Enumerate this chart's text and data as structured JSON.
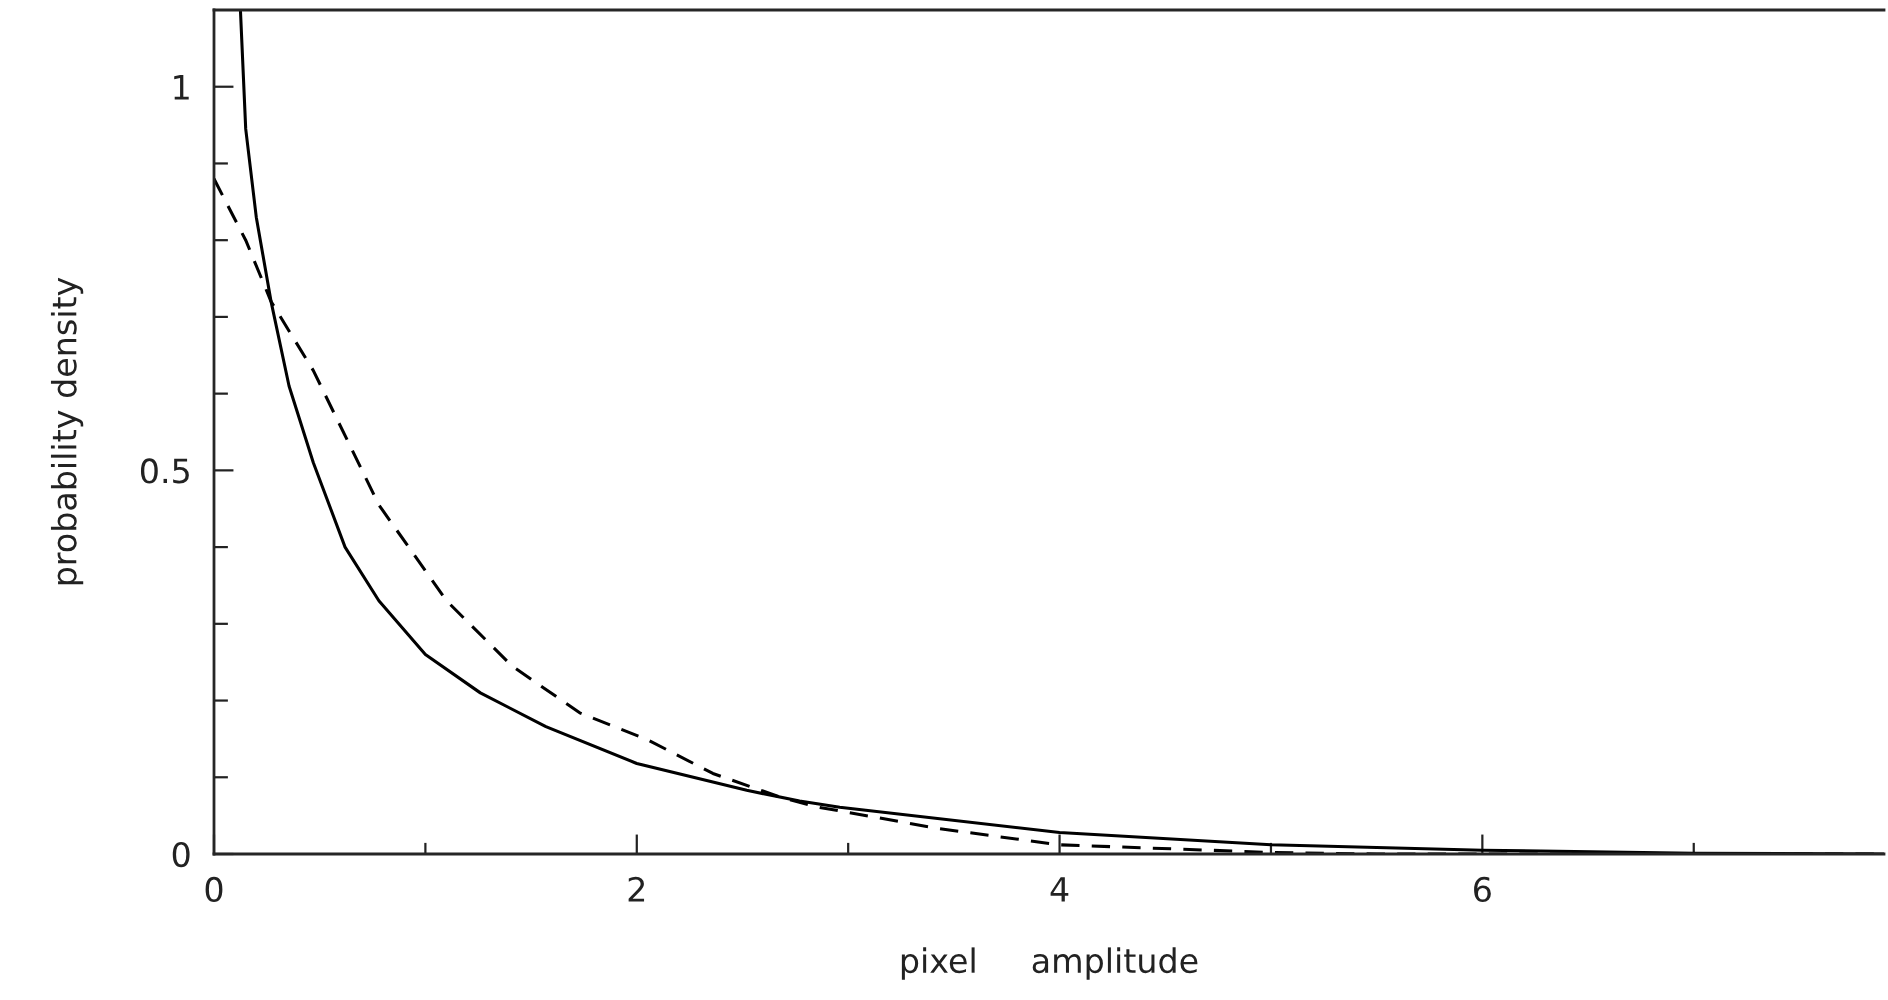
{
  "chart_data": {
    "type": "line",
    "xlabel": "pixel     amplitude",
    "ylabel": "probability density",
    "xlim": [
      0,
      7.9
    ],
    "ylim": [
      0,
      1.1
    ],
    "xticks": [
      0,
      {
        "value": 1,
        "label": null
      },
      2,
      {
        "value": 3,
        "label": null
      },
      4,
      {
        "value": 5,
        "label": null
      },
      6,
      {
        "value": 7,
        "label": null
      }
    ],
    "yticks": [
      0,
      {
        "value": 0.1,
        "label": null
      },
      {
        "value": 0.2,
        "label": null
      },
      {
        "value": 0.3,
        "label": null
      },
      {
        "value": 0.4,
        "label": null
      },
      0.5,
      {
        "value": 0.6,
        "label": null
      },
      {
        "value": 0.7,
        "label": null
      },
      {
        "value": 0.8,
        "label": null
      },
      {
        "value": 0.9,
        "label": null
      },
      1
    ],
    "grid": false,
    "marker": "none",
    "series": [
      {
        "color": "#000000",
        "line_style": "solid",
        "x": [
          0.125,
          0.15,
          0.2,
          0.27,
          0.355,
          0.47,
          0.62,
          0.78,
          1.0,
          1.26,
          1.57,
          2.0,
          2.52,
          2.77,
          2.96,
          4.0,
          5.0,
          6.0,
          7.0,
          7.9
        ],
        "values": [
          1.1,
          0.945,
          0.83,
          0.72,
          0.61,
          0.51,
          0.4,
          0.33,
          0.26,
          0.21,
          0.166,
          0.118,
          0.083,
          0.069,
          0.061,
          0.028,
          0.012,
          0.005,
          0.001,
          0
        ]
      },
      {
        "color": "#000000",
        "line_style": "dashed",
        "x": [
          0,
          0.15,
          0.27,
          0.47,
          0.78,
          1.1,
          1.41,
          1.73,
          2.05,
          2.36,
          2.68,
          2.84,
          3.43,
          4.0,
          5.0,
          5.5,
          7.9
        ],
        "values": [
          0.88,
          0.8,
          0.72,
          0.63,
          0.455,
          0.33,
          0.245,
          0.184,
          0.149,
          0.105,
          0.074,
          0.062,
          0.033,
          0.012,
          0.002,
          0,
          0
        ]
      }
    ]
  }
}
